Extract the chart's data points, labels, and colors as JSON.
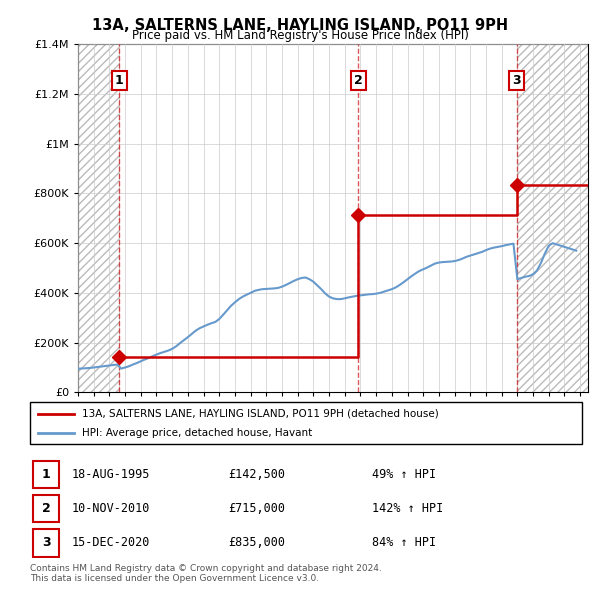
{
  "title": "13A, SALTERNS LANE, HAYLING ISLAND, PO11 9PH",
  "subtitle": "Price paid vs. HM Land Registry's House Price Index (HPI)",
  "sale_prices": [
    142500,
    715000,
    835000
  ],
  "sale_years_num": [
    1995.63,
    2010.86,
    2020.96
  ],
  "sale_labels": [
    "1",
    "2",
    "3"
  ],
  "legend_line1": "13A, SALTERNS LANE, HAYLING ISLAND, PO11 9PH (detached house)",
  "legend_line2": "HPI: Average price, detached house, Havant",
  "table_rows": [
    [
      "1",
      "18-AUG-1995",
      "£142,500",
      "49% ↑ HPI"
    ],
    [
      "2",
      "10-NOV-2010",
      "£715,000",
      "142% ↑ HPI"
    ],
    [
      "3",
      "15-DEC-2020",
      "£835,000",
      "84% ↑ HPI"
    ]
  ],
  "footer": "Contains HM Land Registry data © Crown copyright and database right 2024.\nThis data is licensed under the Open Government Licence v3.0.",
  "hpi_years": [
    1993.0,
    1993.25,
    1993.5,
    1993.75,
    1994.0,
    1994.25,
    1994.5,
    1994.75,
    1995.0,
    1995.25,
    1995.5,
    1995.75,
    1996.0,
    1996.25,
    1996.5,
    1996.75,
    1997.0,
    1997.25,
    1997.5,
    1997.75,
    1998.0,
    1998.25,
    1998.5,
    1998.75,
    1999.0,
    1999.25,
    1999.5,
    1999.75,
    2000.0,
    2000.25,
    2000.5,
    2000.75,
    2001.0,
    2001.25,
    2001.5,
    2001.75,
    2002.0,
    2002.25,
    2002.5,
    2002.75,
    2003.0,
    2003.25,
    2003.5,
    2003.75,
    2004.0,
    2004.25,
    2004.5,
    2004.75,
    2005.0,
    2005.25,
    2005.5,
    2005.75,
    2006.0,
    2006.25,
    2006.5,
    2006.75,
    2007.0,
    2007.25,
    2007.5,
    2007.75,
    2008.0,
    2008.25,
    2008.5,
    2008.75,
    2009.0,
    2009.25,
    2009.5,
    2009.75,
    2010.0,
    2010.25,
    2010.5,
    2010.75,
    2011.0,
    2011.25,
    2011.5,
    2011.75,
    2012.0,
    2012.25,
    2012.5,
    2012.75,
    2013.0,
    2013.25,
    2013.5,
    2013.75,
    2014.0,
    2014.25,
    2014.5,
    2014.75,
    2015.0,
    2015.25,
    2015.5,
    2015.75,
    2016.0,
    2016.25,
    2016.5,
    2016.75,
    2017.0,
    2017.25,
    2017.5,
    2017.75,
    2018.0,
    2018.25,
    2018.5,
    2018.75,
    2019.0,
    2019.25,
    2019.5,
    2019.75,
    2020.0,
    2020.25,
    2020.5,
    2020.75,
    2021.0,
    2021.25,
    2021.5,
    2021.75,
    2022.0,
    2022.25,
    2022.5,
    2022.75,
    2023.0,
    2023.25,
    2023.5,
    2023.75,
    2024.0,
    2024.25,
    2024.5,
    2024.75
  ],
  "hpi_values": [
    95000,
    96000,
    97000,
    98000,
    100000,
    102000,
    104000,
    106000,
    108000,
    110000,
    112000,
    95700,
    100000,
    105000,
    112000,
    118000,
    125000,
    132000,
    138000,
    145000,
    152000,
    158000,
    163000,
    168000,
    175000,
    185000,
    198000,
    210000,
    222000,
    235000,
    248000,
    258000,
    265000,
    272000,
    278000,
    283000,
    295000,
    312000,
    330000,
    348000,
    362000,
    375000,
    385000,
    393000,
    400000,
    408000,
    412000,
    415000,
    416000,
    417000,
    418000,
    420000,
    425000,
    432000,
    440000,
    448000,
    455000,
    460000,
    462000,
    455000,
    445000,
    430000,
    415000,
    398000,
    385000,
    378000,
    375000,
    375000,
    378000,
    382000,
    385000,
    388000,
    390000,
    392000,
    394000,
    395000,
    397000,
    400000,
    405000,
    410000,
    415000,
    422000,
    432000,
    443000,
    455000,
    467000,
    478000,
    488000,
    495000,
    502000,
    510000,
    518000,
    522000,
    524000,
    525000,
    526000,
    528000,
    532000,
    538000,
    545000,
    550000,
    555000,
    560000,
    565000,
    572000,
    578000,
    582000,
    585000,
    588000,
    592000,
    595000,
    598000,
    455000,
    460000,
    465000,
    468000,
    475000,
    490000,
    520000,
    558000,
    590000,
    600000,
    595000,
    590000,
    585000,
    580000,
    575000,
    570000
  ],
  "price_line_color": "#cc0000",
  "hpi_line_color": "#6699cc",
  "marker_color": "#cc0000",
  "label_box_color": "#cc0000",
  "grid_color": "#cccccc",
  "dashed_line_color": "#cc0000",
  "ylim": [
    0,
    1400000
  ],
  "xlim": [
    1993.0,
    2025.5
  ],
  "yticks": [
    0,
    200000,
    400000,
    600000,
    800000,
    1000000,
    1200000,
    1400000
  ],
  "ytick_labels": [
    "£0",
    "£200K",
    "£400K",
    "£600K",
    "£800K",
    "£1M",
    "£1.2M",
    "£1.4M"
  ],
  "xticks": [
    1993,
    1994,
    1995,
    1996,
    1997,
    1998,
    1999,
    2000,
    2001,
    2002,
    2003,
    2004,
    2005,
    2006,
    2007,
    2008,
    2009,
    2010,
    2011,
    2012,
    2013,
    2014,
    2015,
    2016,
    2017,
    2018,
    2019,
    2020,
    2021,
    2022,
    2023,
    2024,
    2025
  ]
}
